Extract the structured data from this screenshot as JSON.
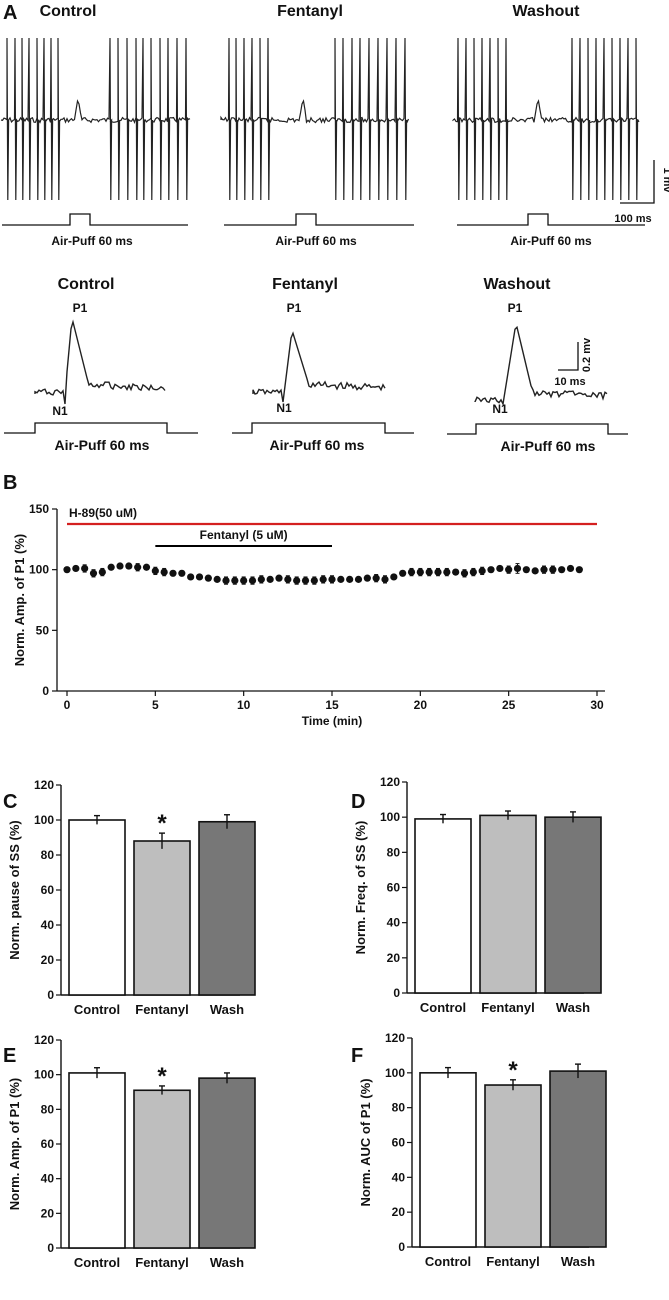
{
  "panels": {
    "A": "A",
    "B": "B",
    "C": "C",
    "D": "D",
    "E": "E",
    "F": "F"
  },
  "panelA": {
    "conditions": [
      "Control",
      "Fentanyl",
      "Washout"
    ],
    "stimulus_label": "Air-Puff  60 ms",
    "scale_top": {
      "v": "1 mv",
      "t": "100 ms"
    },
    "scale_bottom": {
      "v": "0.2 mv",
      "t": "10 ms"
    },
    "peak_label": "P1",
    "trough_label": "N1"
  },
  "chart_data": [
    {
      "panel": "B",
      "type": "scatter",
      "ylabel": "Norm. Amp. of P1 (%)",
      "xlabel": "Time (min)",
      "xlim": [
        0,
        30
      ],
      "ylim": [
        0,
        150
      ],
      "xticks": [
        "0",
        "5",
        "10",
        "15",
        "20",
        "25",
        "30"
      ],
      "yticks": [
        "0",
        "50",
        "100",
        "150"
      ],
      "annotations": [
        {
          "label": "H-89(50 uM)",
          "start": 0,
          "end": 30,
          "color": "#d42020"
        },
        {
          "label": "Fentanyl (5 uM)",
          "start": 5,
          "end": 15,
          "color": "#000000"
        }
      ],
      "x": [
        0,
        0.5,
        1,
        1.5,
        2,
        2.5,
        3,
        3.5,
        4,
        4.5,
        5,
        5.5,
        6,
        6.5,
        7,
        7.5,
        8,
        8.5,
        9,
        9.5,
        10,
        10.5,
        11,
        11.5,
        12,
        12.5,
        13,
        13.5,
        14,
        14.5,
        15,
        15.5,
        16,
        16.5,
        17,
        17.5,
        18,
        18.5,
        19,
        19.5,
        20,
        20.5,
        21,
        21.5,
        22,
        22.5,
        23,
        23.5,
        24,
        24.5,
        25,
        25.5,
        26,
        26.5,
        27,
        27.5,
        28,
        28.5,
        29
      ],
      "y": [
        100,
        101,
        101,
        97,
        98,
        102,
        103,
        103,
        102,
        102,
        99,
        98,
        97,
        97,
        94,
        94,
        93,
        92,
        91,
        91,
        91,
        91,
        92,
        92,
        93,
        92,
        91,
        91,
        91,
        92,
        92,
        92,
        92,
        92,
        93,
        93,
        92,
        94,
        97,
        98,
        98,
        98,
        98,
        98,
        98,
        97,
        98,
        99,
        100,
        101,
        100,
        101,
        100,
        99,
        100,
        100,
        100,
        101,
        100
      ],
      "err": [
        2,
        2,
        3,
        3,
        3,
        2,
        2,
        2,
        3,
        2,
        3,
        3,
        2,
        2,
        2,
        2,
        2,
        2,
        3,
        3,
        3,
        3,
        3,
        2,
        2,
        3,
        3,
        3,
        3,
        3,
        3,
        2,
        2,
        2,
        2,
        3,
        3,
        2,
        2,
        3,
        3,
        3,
        3,
        3,
        2,
        3,
        3,
        3,
        2,
        2,
        3,
        4,
        2,
        2,
        3,
        3,
        2,
        2,
        2
      ]
    },
    {
      "panel": "C",
      "type": "bar",
      "ylabel": "Norm. pause of SS (%)",
      "categories": [
        "Control",
        "Fentanyl",
        "Wash"
      ],
      "values": [
        100,
        88,
        99
      ],
      "errors": [
        2.5,
        4.5,
        4
      ],
      "significance": [
        "",
        "*",
        ""
      ],
      "ylim": [
        0,
        120
      ],
      "yticks": [
        "0",
        "20",
        "40",
        "60",
        "80",
        "100",
        "120"
      ],
      "colors": [
        "#ffffff",
        "#bebebe",
        "#777777"
      ]
    },
    {
      "panel": "D",
      "type": "bar",
      "ylabel": "Norm. Freq. of SS (%)",
      "categories": [
        "Control",
        "Fentanyl",
        "Wash"
      ],
      "values": [
        99,
        101,
        100
      ],
      "errors": [
        2.5,
        2.5,
        3
      ],
      "significance": [
        "",
        "",
        ""
      ],
      "ylim": [
        0,
        120
      ],
      "yticks": [
        "0",
        "20",
        "40",
        "60",
        "80",
        "100",
        "120"
      ],
      "colors": [
        "#ffffff",
        "#bebebe",
        "#777777"
      ]
    },
    {
      "panel": "E",
      "type": "bar",
      "ylabel": "Norm. Amp. of P1 (%)",
      "categories": [
        "Control",
        "Fentanyl",
        "Wash"
      ],
      "values": [
        101,
        91,
        98
      ],
      "errors": [
        3,
        2.5,
        3
      ],
      "significance": [
        "",
        "*",
        ""
      ],
      "ylim": [
        0,
        120
      ],
      "yticks": [
        "0",
        "20",
        "40",
        "60",
        "80",
        "100",
        "120"
      ],
      "colors": [
        "#ffffff",
        "#bebebe",
        "#777777"
      ]
    },
    {
      "panel": "F",
      "type": "bar",
      "ylabel": "Norm. AUC of P1 (%)",
      "categories": [
        "Control",
        "Fentanyl",
        "Wash"
      ],
      "values": [
        100,
        93,
        101
      ],
      "errors": [
        3,
        3,
        4
      ],
      "significance": [
        "",
        "*",
        ""
      ],
      "ylim": [
        0,
        120
      ],
      "yticks": [
        "0",
        "20",
        "40",
        "60",
        "80",
        "100",
        "120"
      ],
      "colors": [
        "#ffffff",
        "#bebebe",
        "#777777"
      ]
    }
  ]
}
